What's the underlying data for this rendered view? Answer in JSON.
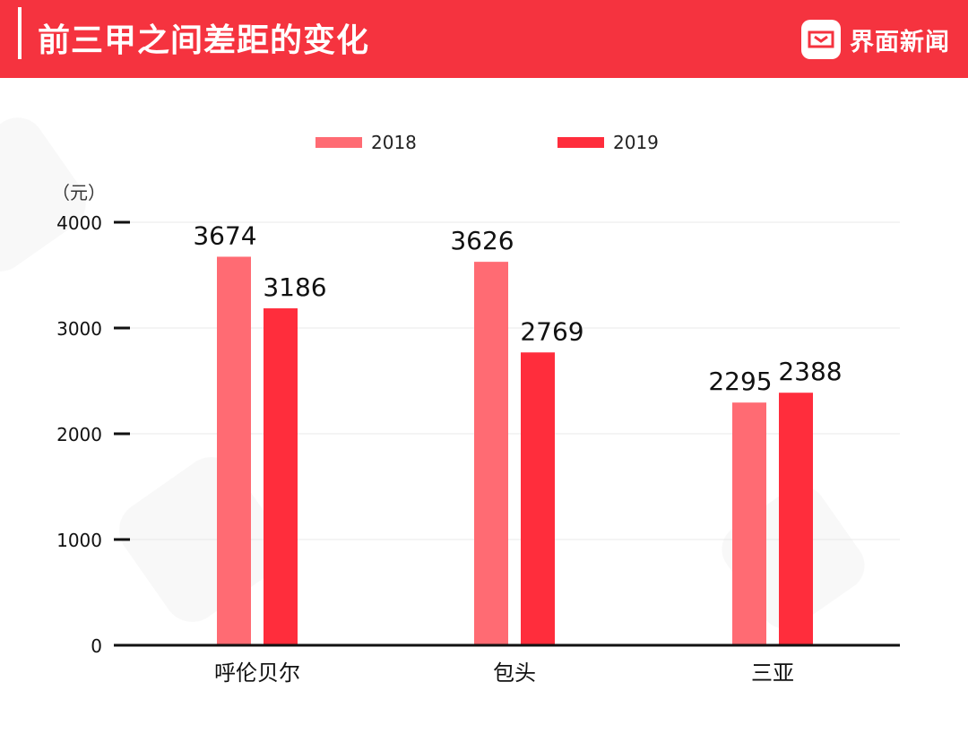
{
  "header": {
    "title": "前三甲之间差距的变化",
    "brand": "界面新闻",
    "brand_icon": "jiemian-logo-icon",
    "color": "#f5333f"
  },
  "chart_data": {
    "type": "bar",
    "title": "",
    "ylabel": "（元）",
    "xlabel": "",
    "categories": [
      "呼伦贝尔",
      "包头",
      "三亚"
    ],
    "series": [
      {
        "name": "2018",
        "values": [
          3674,
          3626,
          2295
        ],
        "color": "#ff6b73"
      },
      {
        "name": "2019",
        "values": [
          3186,
          2769,
          2388
        ],
        "color": "#ff2d3c"
      }
    ],
    "ylim": [
      0,
      4000
    ],
    "yticks": [
      "0",
      "1000",
      "2000",
      "3000",
      "4000"
    ],
    "grid": true,
    "legend": "top-center",
    "data_labels": true
  }
}
